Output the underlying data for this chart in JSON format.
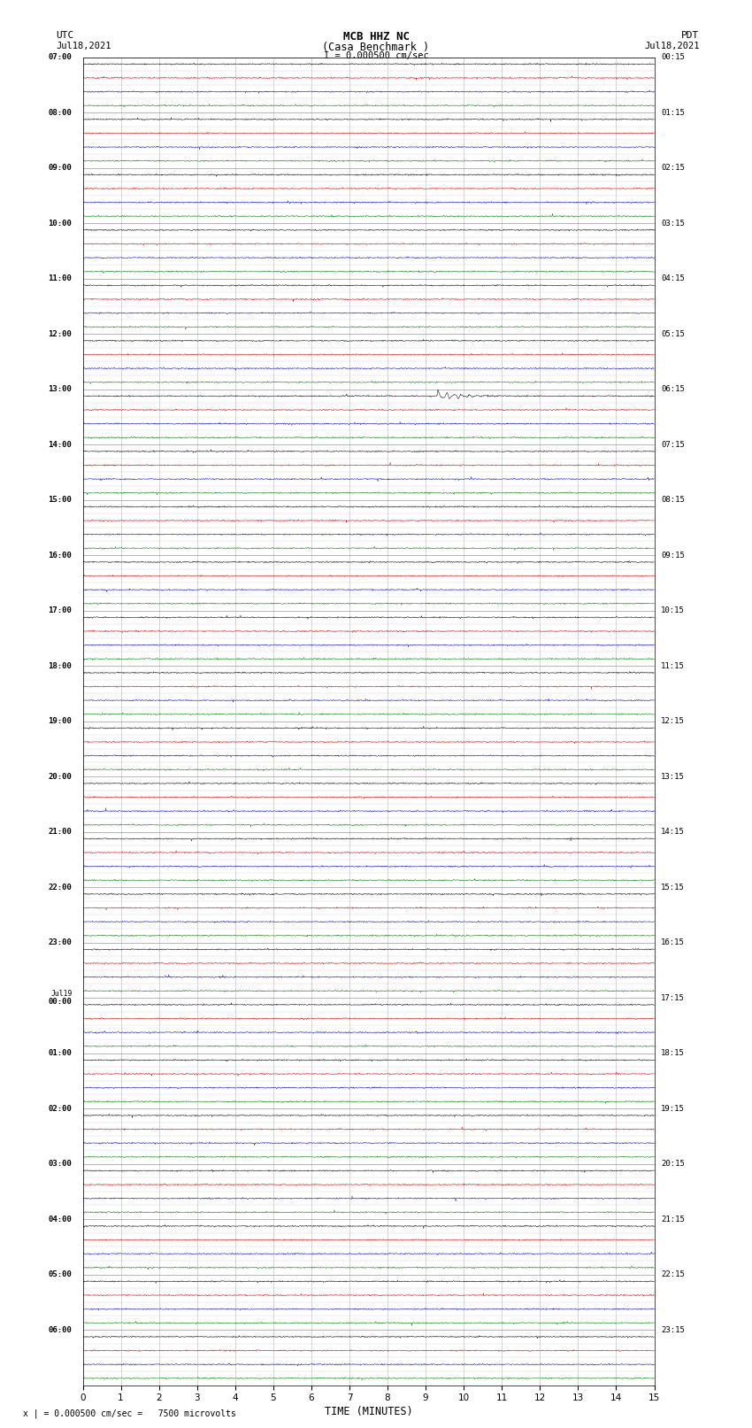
{
  "title_line1": "MCB HHZ NC",
  "title_line2": "(Casa Benchmark )",
  "scale_text": "I = 0.000500 cm/sec",
  "footer_text": "x | = 0.000500 cm/sec =   7500 microvolts",
  "left_header1": "UTC",
  "left_header2": "Jul18,2021",
  "right_header1": "PDT",
  "right_header2": "Jul18,2021",
  "xlabel": "TIME (MINUTES)",
  "xmin": 0,
  "xmax": 15,
  "background_color": "#ffffff",
  "trace_colors": [
    "#000000",
    "#cc0000",
    "#0000cc",
    "#007700"
  ],
  "grid_color": "#888888",
  "total_rows": 96,
  "earthquake_row": 24,
  "earthquake_minute": 9.3,
  "noise_amplitude": 0.025,
  "eq_amplitude": 0.45,
  "fig_width": 8.5,
  "fig_height": 16.13,
  "dpi": 100,
  "left_time_labels": [
    "07:00",
    "08:00",
    "09:00",
    "10:00",
    "11:00",
    "12:00",
    "13:00",
    "14:00",
    "15:00",
    "16:00",
    "17:00",
    "18:00",
    "19:00",
    "20:00",
    "21:00",
    "22:00",
    "23:00",
    "Jul19\n00:00",
    "01:00",
    "02:00",
    "03:00",
    "04:00",
    "05:00",
    "06:00"
  ],
  "right_time_labels": [
    "00:15",
    "01:15",
    "02:15",
    "03:15",
    "04:15",
    "05:15",
    "06:15",
    "07:15",
    "08:15",
    "09:15",
    "10:15",
    "11:15",
    "12:15",
    "13:15",
    "14:15",
    "15:15",
    "16:15",
    "17:15",
    "18:15",
    "19:15",
    "20:15",
    "21:15",
    "22:15",
    "23:15"
  ]
}
